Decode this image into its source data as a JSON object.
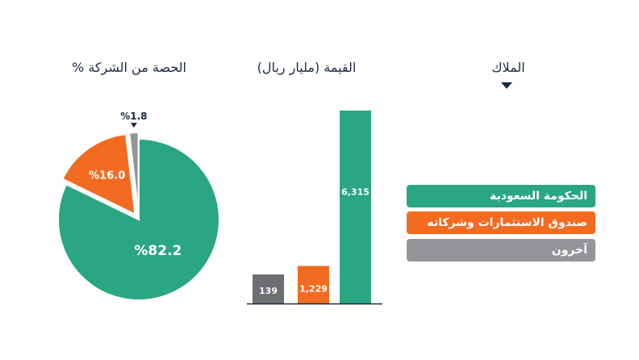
{
  "headers": {
    "share": "الحصة من الشركة %",
    "value": "القيمة (مليار ريال)",
    "owners": "الملاك"
  },
  "legend": [
    {
      "label": "الحكومة السعودية",
      "color": "#2aa683"
    },
    {
      "label": "صندوق الاستثمارات وشركاته",
      "color": "#f26b21"
    },
    {
      "label": "آخرون",
      "color": "#939598"
    }
  ],
  "chart_data": [
    {
      "type": "pie",
      "categories": [
        "الحكومة السعودية",
        "صندوق الاستثمارات وشركاته",
        "آخرون"
      ],
      "values": [
        82.2,
        16.0,
        1.8
      ],
      "value_labels": [
        "%82.2",
        "%16.0",
        "%1.8"
      ],
      "colors": [
        "#2aa683",
        "#f26b21",
        "#939598"
      ],
      "title": "الحصة من الشركة %"
    },
    {
      "type": "bar",
      "categories": [
        "آخرون",
        "صندوق الاستثمارات وشركاته",
        "الحكومة السعودية"
      ],
      "values": [
        139,
        1229,
        6315
      ],
      "value_labels": [
        "139",
        "1,229",
        "6,315"
      ],
      "colors": [
        "#6d6e71",
        "#f26b21",
        "#2aa683"
      ],
      "title": "القيمة (مليار ريال)",
      "ylim": [
        0,
        6315
      ]
    }
  ]
}
